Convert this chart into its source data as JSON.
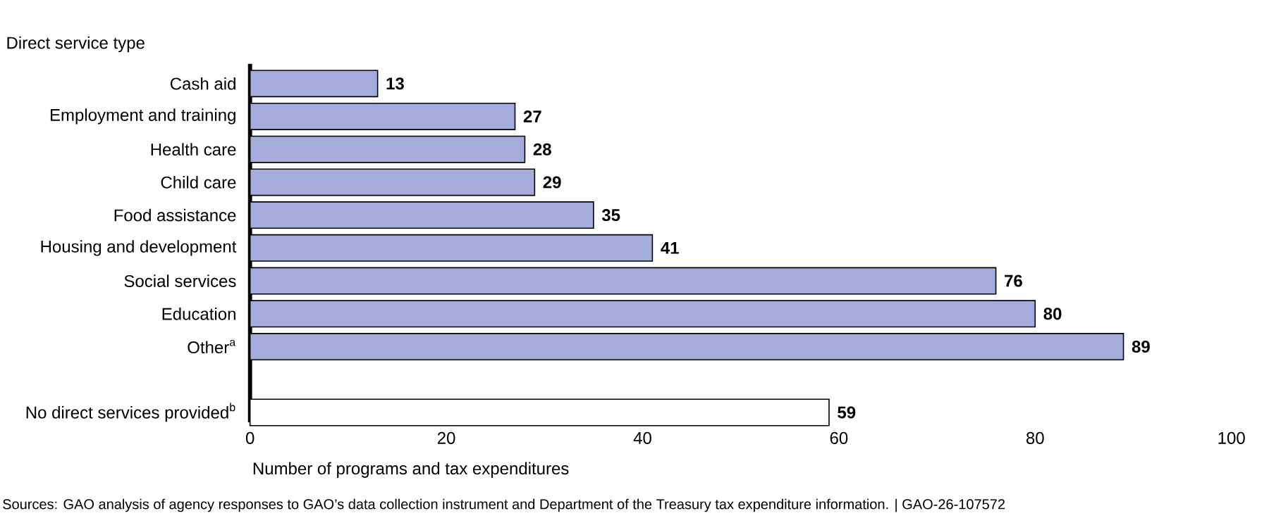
{
  "chart_data": {
    "type": "bar",
    "orientation": "horizontal",
    "ylabel": "Direct service type",
    "xlabel": "Number of programs and tax expenditures",
    "categories": [
      "Cash aid",
      "Employment and training",
      "Health care",
      "Child care",
      "Food assistance",
      "Housing and development",
      "Social services",
      "Education",
      "Other$^{a}$",
      null,
      "No direct services provided$^{b}$"
    ],
    "values": [
      13,
      27,
      28,
      29,
      35,
      41,
      76,
      80,
      89,
      null,
      59
    ],
    "colors": [
      "#a4acdc",
      "#a4acdc",
      "#a4acdc",
      "#a4acdc",
      "#a4acdc",
      "#a4acdc",
      "#a4acdc",
      "#a4acdc",
      "#a4acdc",
      "#a4acdc",
      "#ffffff"
    ],
    "xlim": [
      0,
      100
    ],
    "xticks": [
      0,
      20,
      40,
      60,
      80,
      100
    ],
    "data_labels": true,
    "grid": false,
    "annotations": [
      "Sources: GAO analysis of agency responses to GAO’s data collection instrument and Department of the Treasury tax expenditure information.  |  GAO-26-107572"
    ]
  }
}
